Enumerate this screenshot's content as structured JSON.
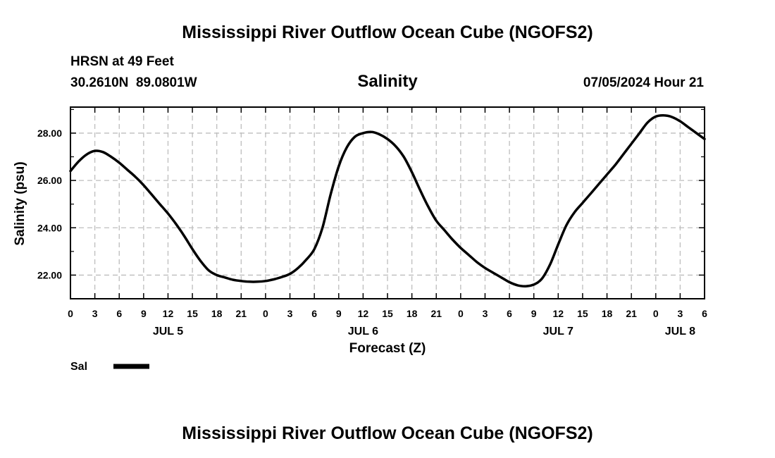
{
  "page": {
    "title": "Mississippi River Outflow Ocean Cube (NGOFS2)",
    "footer_title": "Mississippi River Outflow Ocean Cube (NGOFS2)"
  },
  "station": {
    "name": "HRSN at 49 Feet",
    "coords": "30.2610N  89.0801W",
    "datetime": "07/05/2024 Hour 21"
  },
  "chart_data": {
    "type": "line",
    "title": "Salinity",
    "xlabel": "Forecast (Z)",
    "ylabel": "Salinity (psu)",
    "x_unit": "hours from 00Z Jul 5",
    "xlim": [
      0,
      78
    ],
    "ylim": [
      21.0,
      29.1
    ],
    "grid": true,
    "line_color": "#000000",
    "x_tick_labels": [
      "0",
      "3",
      "6",
      "9",
      "12",
      "15",
      "18",
      "21",
      "0",
      "3",
      "6",
      "9",
      "12",
      "15",
      "18",
      "21",
      "0",
      "3",
      "6",
      "9",
      "12",
      "15",
      "18",
      "21",
      "0",
      "3",
      "6"
    ],
    "y_ticks": [
      22.0,
      24.0,
      26.0,
      28.0
    ],
    "y_tick_labels": [
      "22.00",
      "24.00",
      "26.00",
      "28.00"
    ],
    "day_labels": [
      {
        "hour": 12,
        "label": "JUL 5"
      },
      {
        "hour": 36,
        "label": "JUL 6"
      },
      {
        "hour": 60,
        "label": "JUL 7"
      },
      {
        "hour": 75,
        "label": "JUL 8"
      }
    ],
    "legend": [
      {
        "name": "Sal",
        "color": "#000000"
      }
    ],
    "series": [
      {
        "name": "Sal",
        "x": [
          0,
          1,
          2,
          3,
          4,
          5,
          6,
          7,
          8,
          9,
          10,
          11,
          12,
          13,
          14,
          15,
          16,
          17,
          18,
          19,
          20,
          21,
          22,
          23,
          24,
          25,
          26,
          27,
          28,
          29,
          30,
          31,
          32,
          33,
          34,
          35,
          36,
          37,
          38,
          39,
          40,
          41,
          42,
          43,
          44,
          45,
          46,
          47,
          48,
          49,
          50,
          51,
          52,
          53,
          54,
          55,
          56,
          57,
          58,
          59,
          60,
          61,
          62,
          63,
          64,
          65,
          66,
          67,
          68,
          69,
          70,
          71,
          72,
          73,
          74,
          75,
          76,
          77,
          78
        ],
        "values": [
          26.4,
          26.8,
          27.1,
          27.25,
          27.2,
          27.0,
          26.75,
          26.45,
          26.15,
          25.8,
          25.4,
          25.0,
          24.6,
          24.15,
          23.65,
          23.1,
          22.6,
          22.2,
          22.0,
          21.9,
          21.8,
          21.75,
          21.72,
          21.72,
          21.75,
          21.82,
          21.92,
          22.05,
          22.3,
          22.65,
          23.1,
          24.0,
          25.4,
          26.6,
          27.4,
          27.85,
          28.0,
          28.05,
          27.95,
          27.75,
          27.45,
          27.0,
          26.35,
          25.6,
          24.9,
          24.3,
          23.9,
          23.5,
          23.15,
          22.85,
          22.55,
          22.3,
          22.1,
          21.9,
          21.7,
          21.57,
          21.53,
          21.6,
          21.85,
          22.45,
          23.3,
          24.1,
          24.65,
          25.05,
          25.45,
          25.85,
          26.25,
          26.65,
          27.1,
          27.55,
          28.0,
          28.45,
          28.7,
          28.75,
          28.68,
          28.5,
          28.25,
          28.0,
          27.75
        ]
      }
    ]
  }
}
